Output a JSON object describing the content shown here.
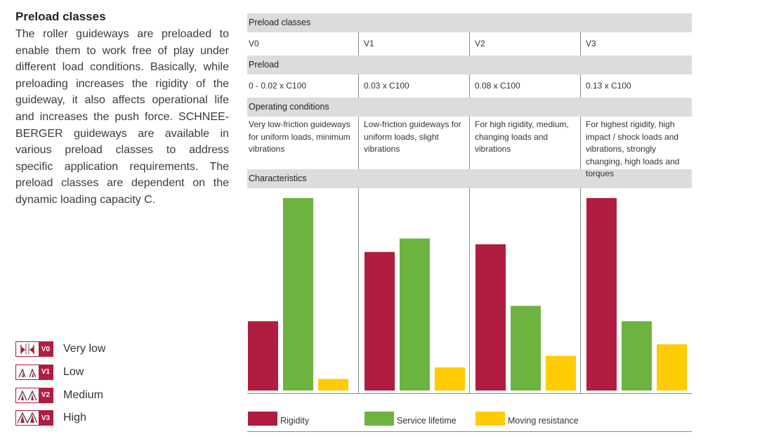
{
  "left_text": {
    "title": "Preload classes",
    "body": "The roller guideways are preloaded to enable them to work free of play under different load conditions. Basically, while preloading increases the rigidity of the guideway, it also affects operational life and increases the push force. SCHNEE-BERGER guideways are available in various preload classes to address specific application requirements. The preload classes are dependent on the dynamic loading capacity C."
  },
  "class_legend": [
    {
      "code": "V0",
      "label": "Very low"
    },
    {
      "code": "V1",
      "label": "Low"
    },
    {
      "code": "V2",
      "label": "Medium"
    },
    {
      "code": "V3",
      "label": "High"
    }
  ],
  "table": {
    "header_classes": "Preload classes",
    "classes": [
      "V0",
      "V1",
      "V2",
      "V3"
    ],
    "header_preload": "Preload",
    "preload": [
      "0 - 0.02 x C100",
      "0.03 x C100",
      "0.08 x C100",
      "0.13 x C100"
    ],
    "header_conditions": "Operating conditions",
    "conditions": [
      "Very low-friction guideways for uniform loads, minimum vibrations",
      "Low-friction guideways for uniform loads, slight vibrations",
      "For high rigidity, medium, changing loads and vibrations",
      "For highest rigidity, high impact / shock loads and vibrations, strongly changing, high loads and torques"
    ],
    "header_characteristics": "Characteristics"
  },
  "chart_data": {
    "type": "bar",
    "categories": [
      "V0",
      "V1",
      "V2",
      "V3"
    ],
    "series": [
      {
        "name": "Rigidity",
        "color": "#b01d3e",
        "values": [
          36,
          72,
          76,
          100
        ]
      },
      {
        "name": "Service lifetime",
        "color": "#6db33f",
        "values": [
          100,
          79,
          44,
          36
        ]
      },
      {
        "name": "Moving resistance",
        "color": "#ffcb05",
        "values": [
          6,
          12,
          18,
          24
        ]
      }
    ],
    "ylim": [
      0,
      100
    ],
    "grid": false,
    "legend": "bottom"
  }
}
